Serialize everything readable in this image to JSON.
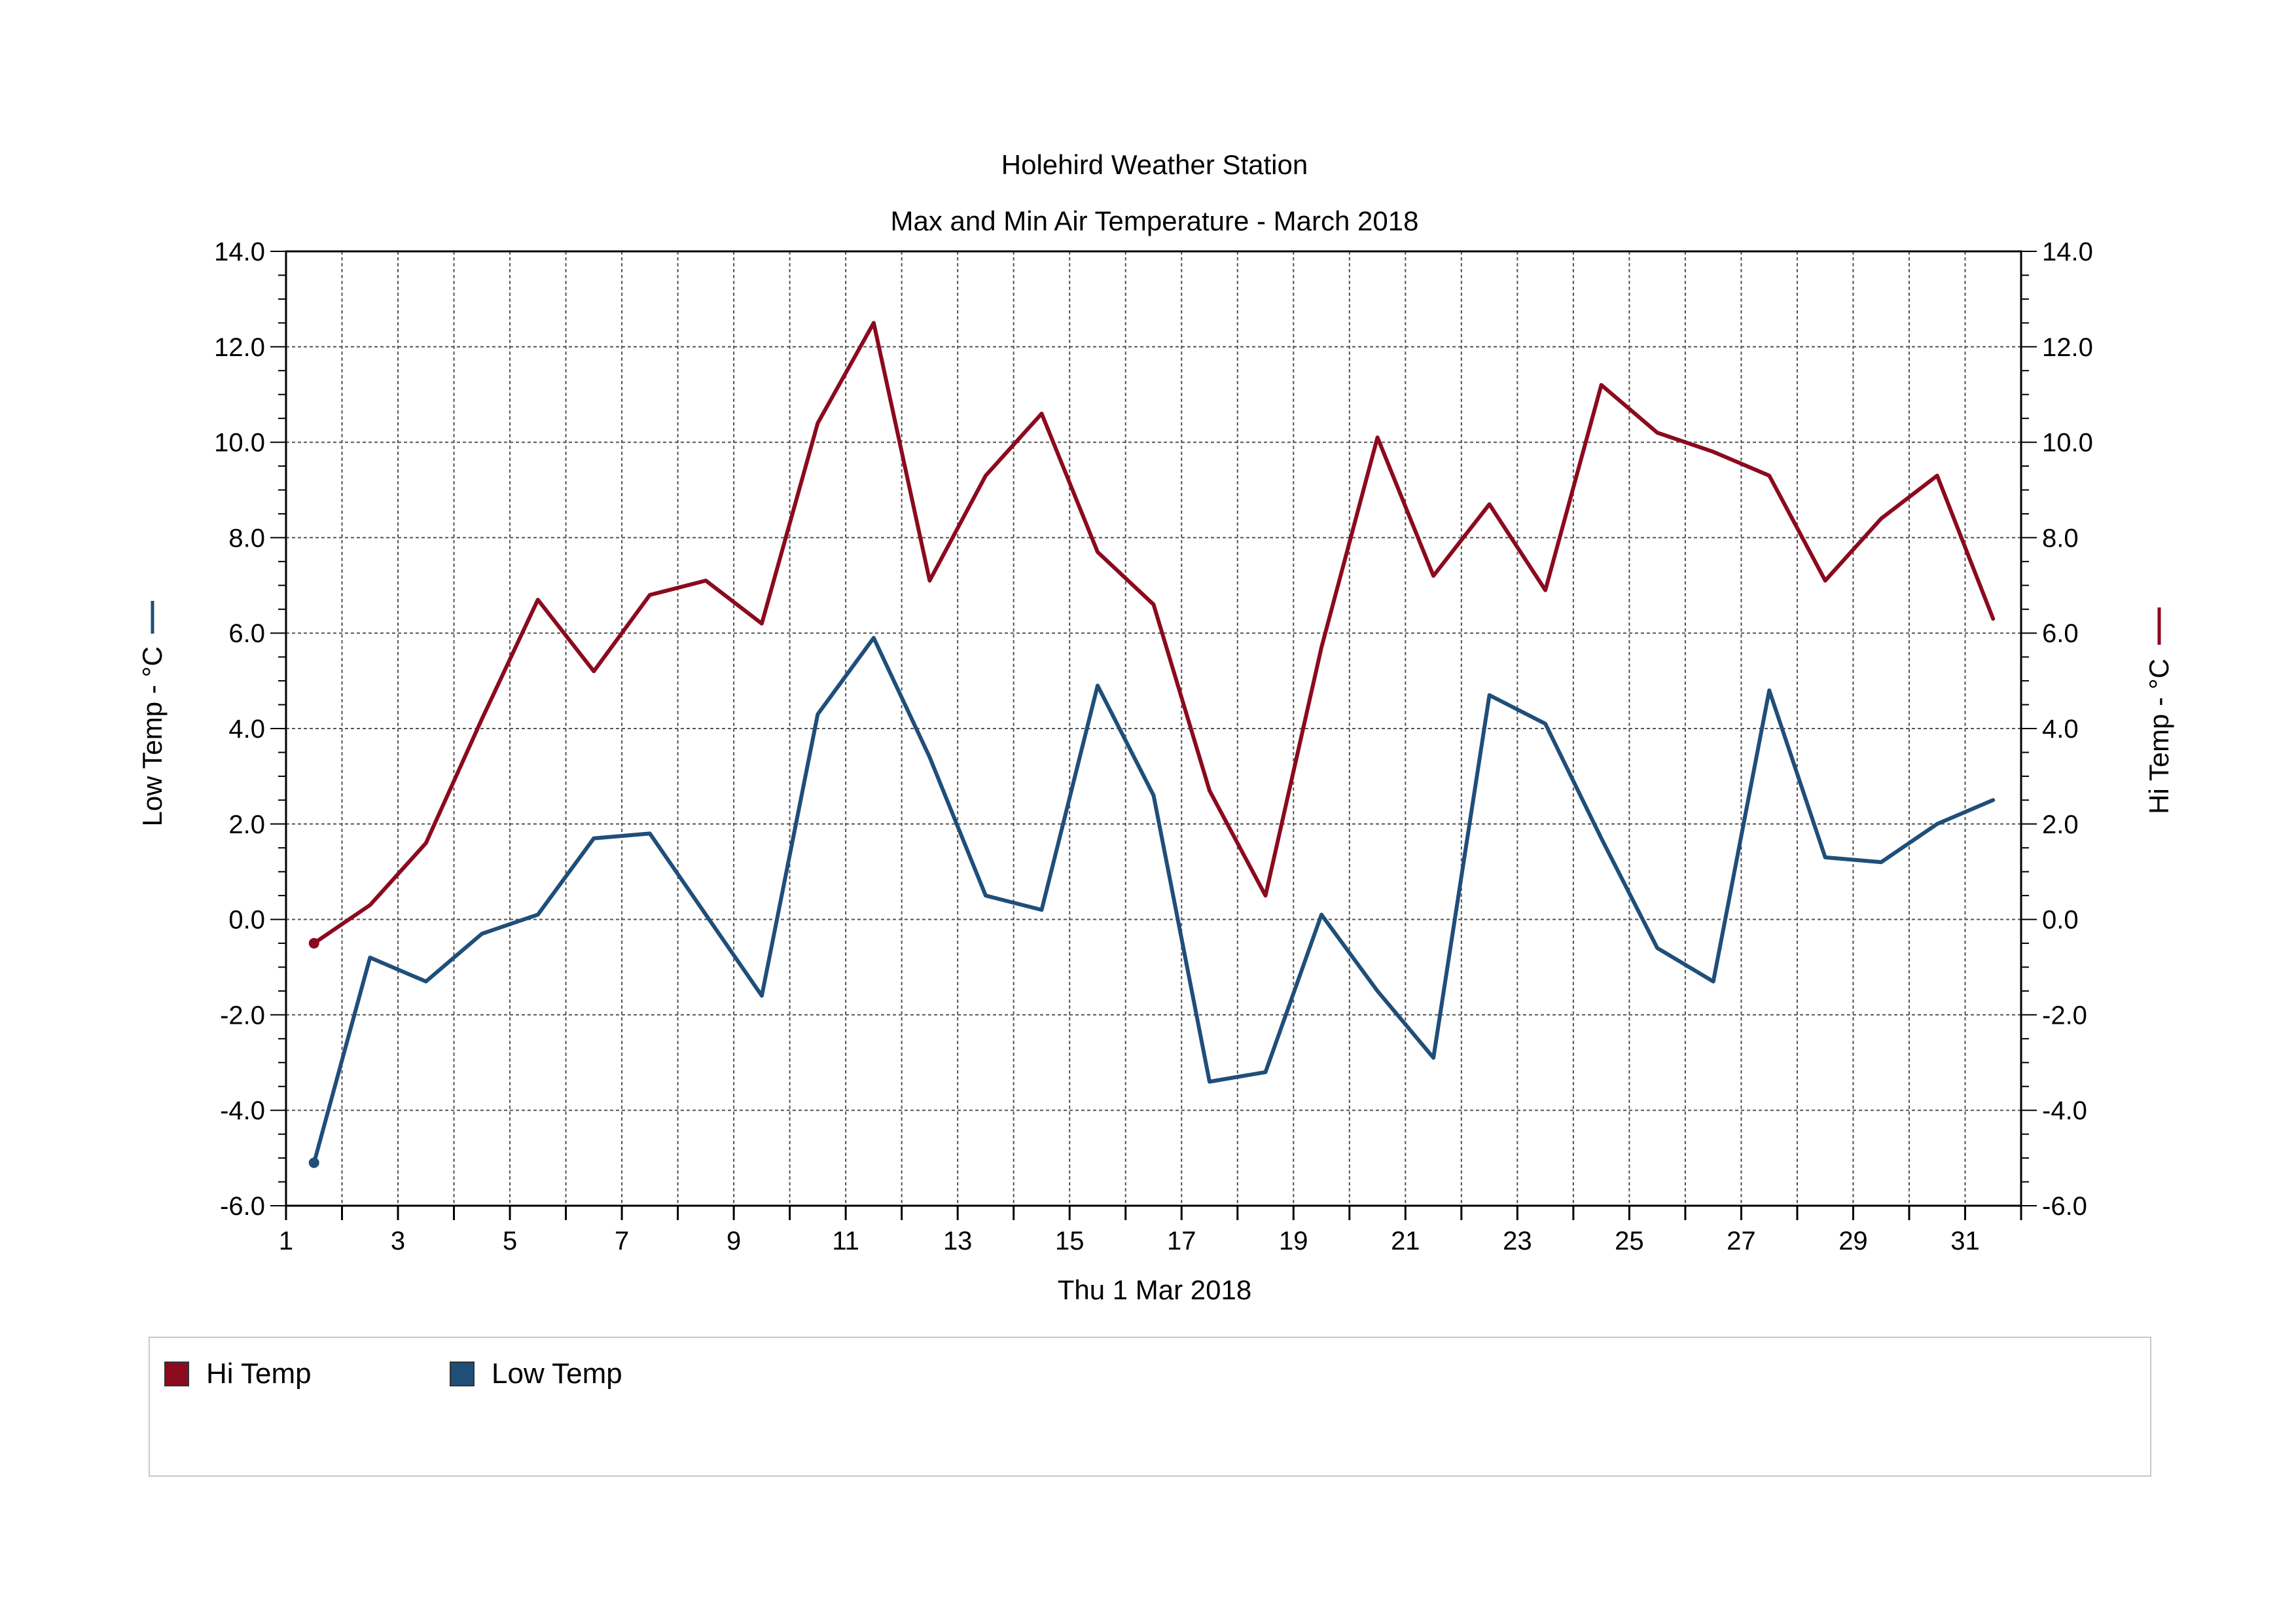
{
  "chart_data": {
    "type": "line",
    "title": "Holehird Weather Station",
    "subtitle": "Max and Min Air Temperature - March 2018",
    "xlabel": "Thu 1 Mar 2018",
    "ylabel_left": "Low Temp - °C",
    "ylabel_right": "Hi Temp - °C",
    "xlim": [
      1,
      32
    ],
    "ylim": [
      -6,
      14
    ],
    "x_ticks": [
      1,
      3,
      5,
      7,
      9,
      11,
      13,
      15,
      17,
      19,
      21,
      23,
      25,
      27,
      29,
      31
    ],
    "y_ticks": [
      -6,
      -4,
      -2,
      0,
      2,
      4,
      6,
      8,
      10,
      12,
      14
    ],
    "y_tick_labels": [
      "-6.0",
      "-4.0",
      "-2.0",
      "0.0",
      "2.0",
      "4.0",
      "6.0",
      "8.0",
      "10.0",
      "12.0",
      "14.0"
    ],
    "grid": true,
    "legend_position": "bottom",
    "x": [
      1.5,
      2.5,
      3.5,
      4.5,
      5.5,
      6.5,
      7.5,
      8.5,
      9.5,
      10.5,
      11.5,
      12.5,
      13.5,
      14.5,
      15.5,
      16.5,
      17.5,
      18.5,
      19.5,
      20.5,
      21.5,
      22.5,
      23.5,
      24.5,
      25.5,
      26.5,
      27.5,
      28.5,
      29.5,
      30.5,
      31.5
    ],
    "series": [
      {
        "name": "Hi Temp",
        "color": "#8b0a1e",
        "axis": "right",
        "values": [
          -0.5,
          0.3,
          1.6,
          4.2,
          6.7,
          5.2,
          6.8,
          7.1,
          6.2,
          10.4,
          12.5,
          7.1,
          9.3,
          10.6,
          7.7,
          6.6,
          2.7,
          0.5,
          5.7,
          10.1,
          7.2,
          8.7,
          6.9,
          11.2,
          10.2,
          9.8,
          9.3,
          7.1,
          8.4,
          9.3,
          6.3
        ]
      },
      {
        "name": "Low Temp",
        "color": "#1f4e79",
        "axis": "left",
        "values": [
          -5.1,
          -0.8,
          -1.3,
          -0.3,
          0.1,
          1.7,
          1.8,
          0.1,
          -1.6,
          4.3,
          5.9,
          3.4,
          0.5,
          0.2,
          4.9,
          2.6,
          -3.4,
          -3.2,
          0.1,
          -1.5,
          -2.9,
          4.7,
          4.1,
          1.7,
          -0.6,
          -1.3,
          4.8,
          1.3,
          1.2,
          2.0,
          2.5
        ]
      }
    ]
  },
  "legend": {
    "items": [
      {
        "label": "Hi Temp",
        "color": "#8b0a1e"
      },
      {
        "label": "Low Temp",
        "color": "#1f4e79"
      }
    ]
  }
}
